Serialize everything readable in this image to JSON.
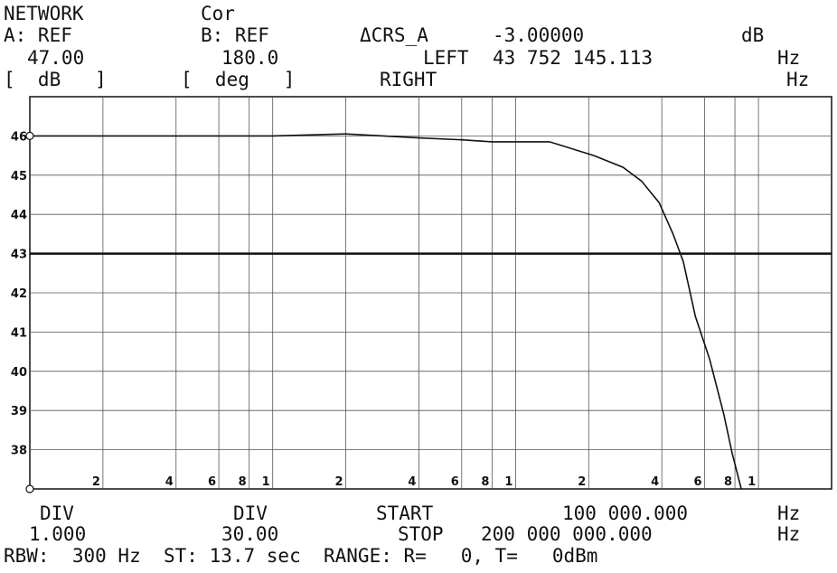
{
  "header": {
    "l1": [
      "NETWORK",
      "Cor"
    ],
    "l2": [
      "A: REF",
      "B: REF",
      "ΔCRS_A",
      "-3.00000",
      "dB"
    ],
    "l3": [
      "47.00",
      "180.0",
      "LEFT",
      "43 752 145.113",
      "Hz"
    ],
    "l4": [
      "[  dB   ]",
      "[  deg   ]",
      "RIGHT",
      "Hz"
    ]
  },
  "footer": {
    "l1": [
      "DIV",
      "DIV",
      "START",
      "100 000.000",
      "Hz"
    ],
    "l2": [
      "1.000",
      "30.00",
      "STOP",
      "200 000 000.000",
      "Hz"
    ],
    "l3": [
      "RBW:  300 Hz  ST: 13.7 sec  RANGE: R=   0, T=   0dBm"
    ]
  },
  "chart_data": {
    "type": "line",
    "xscale": "log",
    "grid": true,
    "xlim": [
      100000,
      200000000
    ],
    "ylim": [
      37,
      47
    ],
    "yticks": [
      38,
      39,
      40,
      41,
      42,
      43,
      44,
      45,
      46
    ],
    "xticks": [
      {
        "value": 200000,
        "label": "2"
      },
      {
        "value": 400000,
        "label": "4"
      },
      {
        "value": 600000,
        "label": "6"
      },
      {
        "value": 800000,
        "label": "8"
      },
      {
        "value": 1000000,
        "label": "1"
      },
      {
        "value": 2000000,
        "label": "2"
      },
      {
        "value": 4000000,
        "label": "4"
      },
      {
        "value": 6000000,
        "label": "6"
      },
      {
        "value": 8000000,
        "label": "8"
      },
      {
        "value": 10000000,
        "label": "1"
      },
      {
        "value": 20000000,
        "label": "2"
      },
      {
        "value": 40000000,
        "label": "4"
      },
      {
        "value": 60000000,
        "label": "6"
      },
      {
        "value": 80000000,
        "label": "8"
      },
      {
        "value": 100000000,
        "label": "1"
      }
    ],
    "reference_line": 43,
    "series": [
      {
        "color": "#111111",
        "x": [
          100000,
          200000,
          500000,
          1000000,
          2000000,
          4000000,
          6000000,
          8000000,
          10000000,
          13800000,
          21000000,
          27700000,
          33000000,
          39000000,
          44500000,
          49000000,
          55000000,
          63000000,
          72000000,
          78000000,
          85000000
        ],
        "values": [
          46.0,
          46.0,
          46.0,
          46.0,
          46.05,
          45.95,
          45.9,
          45.85,
          45.85,
          45.85,
          45.5,
          45.2,
          44.85,
          44.3,
          43.5,
          42.8,
          41.4,
          40.3,
          38.9,
          37.9,
          37.0
        ]
      }
    ]
  }
}
